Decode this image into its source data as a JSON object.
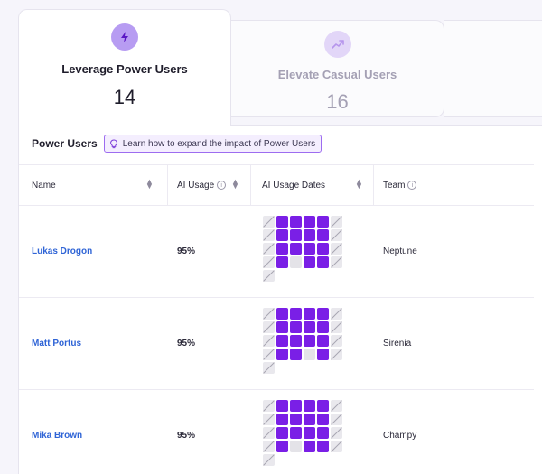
{
  "tabs": [
    {
      "label": "Leverage Power Users",
      "count": "14",
      "icon": "lightning-icon",
      "active": true
    },
    {
      "label": "Elevate Casual Users",
      "count": "16",
      "icon": "trending-up-icon",
      "active": false
    }
  ],
  "panel": {
    "title": "Power Users",
    "learn_link": "Learn how to expand the impact of Power Users"
  },
  "columns": {
    "name": "Name",
    "ai_usage": "AI Usage",
    "ai_usage_dates": "AI Usage Dates",
    "team": "Team"
  },
  "rows": [
    {
      "name": "Lukas Drogon",
      "ai_usage": "95%",
      "team": "Neptune",
      "dates": [
        "n",
        "a",
        "a",
        "a",
        "a",
        "n",
        "n",
        "a",
        "a",
        "a",
        "a",
        "n",
        "n",
        "a",
        "a",
        "a",
        "a",
        "n",
        "n",
        "a",
        "o",
        "a",
        "a",
        "n",
        "n"
      ]
    },
    {
      "name": "Matt Portus",
      "ai_usage": "95%",
      "team": "Sirenia",
      "dates": [
        "n",
        "a",
        "a",
        "a",
        "a",
        "n",
        "n",
        "a",
        "a",
        "a",
        "a",
        "n",
        "n",
        "a",
        "a",
        "a",
        "a",
        "n",
        "n",
        "a",
        "a",
        "o",
        "a",
        "n",
        "n"
      ]
    },
    {
      "name": "Mika Brown",
      "ai_usage": "95%",
      "team": "Champy",
      "dates": [
        "n",
        "a",
        "a",
        "a",
        "a",
        "n",
        "n",
        "a",
        "a",
        "a",
        "a",
        "n",
        "n",
        "a",
        "a",
        "a",
        "a",
        "n",
        "n",
        "a",
        "o",
        "a",
        "a",
        "n",
        "n"
      ]
    }
  ],
  "colors": {
    "accent": "#7a1fe6",
    "link": "#2f64d6",
    "chip_border": "#9d6cf0"
  }
}
